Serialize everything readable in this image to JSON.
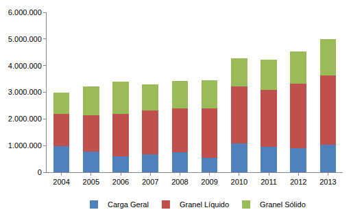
{
  "chart_data": {
    "type": "bar",
    "stacked": true,
    "grid": false,
    "legend": "bottom",
    "categories": [
      "2004",
      "2005",
      "2006",
      "2007",
      "2008",
      "2009",
      "2010",
      "2011",
      "2012",
      "2013"
    ],
    "series": [
      {
        "name": "Carga Geral",
        "color": "#4F81BD",
        "values": [
          980000,
          780000,
          600000,
          670000,
          750000,
          550000,
          1070000,
          960000,
          900000,
          1020000
        ]
      },
      {
        "name": "Granel Líquido",
        "color": "#C0504D",
        "values": [
          1200000,
          1350000,
          1600000,
          1660000,
          1650000,
          1850000,
          2150000,
          2140000,
          2430000,
          2600000
        ]
      },
      {
        "name": "Granel Sólido",
        "color": "#9BBB59",
        "values": [
          820000,
          1100000,
          1200000,
          960000,
          1030000,
          1050000,
          1050000,
          1130000,
          1190000,
          1380000
        ]
      }
    ],
    "ylim": [
      0,
      6000000
    ],
    "yticks": [
      0,
      {
        "value": 1000000,
        "label": "1.000.000"
      },
      {
        "value": 2000000,
        "label": "2.000.000"
      },
      {
        "value": 3000000,
        "label": "3.000.000"
      },
      {
        "value": 4000000,
        "label": "4.000.000"
      },
      {
        "value": 5000000,
        "label": "5.000.000"
      },
      {
        "value": 6000000,
        "label": "6.000.000"
      }
    ]
  }
}
